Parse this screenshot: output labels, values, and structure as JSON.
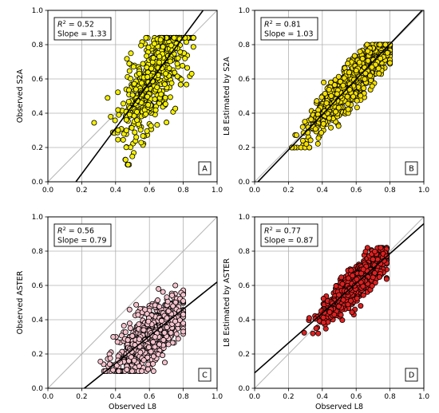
{
  "figure": {
    "background": "#ffffff"
  },
  "chart_data": [
    {
      "type": "scatter",
      "panel_label": "A",
      "xlabel": "",
      "ylabel": "Observed S2A",
      "xlim": [
        0.0,
        1.0
      ],
      "ylim": [
        0.0,
        1.0
      ],
      "xticks": [
        "0.0",
        "0.2",
        "0.4",
        "0.6",
        "0.8",
        "1.0"
      ],
      "yticks": [
        "0.0",
        "0.2",
        "0.4",
        "0.6",
        "0.8",
        "1.0"
      ],
      "grid": true,
      "r2_label": "R",
      "r2_value": " = 0.52",
      "slope_text": "Slope = 1.33",
      "fit_line": {
        "slope": 1.33,
        "intercept": -0.22
      },
      "one_to_one_line": true,
      "marker_color": "#f5f000",
      "cloud": {
        "x_center": 0.62,
        "x_sd": 0.1,
        "x_min": 0.22,
        "x_max": 0.86,
        "y_slope": 1.33,
        "y_intercept": -0.22,
        "y_sd": 0.14,
        "y_min": 0.1,
        "y_max": 0.84,
        "count": 520,
        "seed": 11
      }
    },
    {
      "type": "scatter",
      "panel_label": "B",
      "xlabel": "",
      "ylabel": "L8 Estimated by S2A",
      "xlim": [
        0.0,
        1.0
      ],
      "ylim": [
        0.0,
        1.0
      ],
      "xticks": [
        "0.0",
        "0.2",
        "0.4",
        "0.6",
        "0.8",
        "1.0"
      ],
      "yticks": [
        "0.0",
        "0.2",
        "0.4",
        "0.6",
        "0.8",
        "1.0"
      ],
      "grid": true,
      "r2_label": "R",
      "r2_value": " = 0.81",
      "slope_text": "Slope = 1.03",
      "fit_line": {
        "slope": 1.03,
        "intercept": -0.02
      },
      "one_to_one_line": true,
      "marker_color": "#f5e000",
      "cloud": {
        "x_center": 0.56,
        "x_sd": 0.12,
        "x_min": 0.22,
        "x_max": 0.8,
        "y_slope": 1.03,
        "y_intercept": -0.02,
        "y_sd": 0.06,
        "y_min": 0.2,
        "y_max": 0.8,
        "count": 900,
        "seed": 23
      }
    },
    {
      "type": "scatter",
      "panel_label": "C",
      "xlabel": "Observed L8",
      "ylabel": "Observed ASTER",
      "xlim": [
        0.0,
        1.0
      ],
      "ylim": [
        0.0,
        1.0
      ],
      "xticks": [
        "0.0",
        "0.2",
        "0.4",
        "0.6",
        "0.8",
        "1.0"
      ],
      "yticks": [
        "0.0",
        "0.2",
        "0.4",
        "0.6",
        "0.8",
        "1.0"
      ],
      "grid": true,
      "r2_label": "R",
      "r2_value": " = 0.56",
      "slope_text": "Slope = 0.79",
      "fit_line": {
        "slope": 0.79,
        "intercept": -0.17
      },
      "one_to_one_line": true,
      "marker_color": "#f4c2cc",
      "cloud": {
        "x_center": 0.6,
        "x_sd": 0.1,
        "x_min": 0.2,
        "x_max": 0.8,
        "y_slope": 0.79,
        "y_intercept": -0.17,
        "y_sd": 0.08,
        "y_min": 0.1,
        "y_max": 0.6,
        "count": 750,
        "seed": 37
      }
    },
    {
      "type": "scatter",
      "panel_label": "D",
      "xlabel": "Observed L8",
      "ylabel": "L8 Estimated by ASTER",
      "xlim": [
        0.0,
        1.0
      ],
      "ylim": [
        0.0,
        1.0
      ],
      "xticks": [
        "0.0",
        "0.2",
        "0.4",
        "0.6",
        "0.8",
        "1.0"
      ],
      "yticks": [
        "0.0",
        "0.2",
        "0.4",
        "0.6",
        "0.8",
        "1.0"
      ],
      "grid": true,
      "r2_label": "R",
      "r2_value": " = 0.77",
      "slope_text": "Slope = 0.87",
      "fit_line": {
        "slope": 0.87,
        "intercept": 0.09
      },
      "one_to_one_line": true,
      "marker_color": "#e02020",
      "cloud": {
        "x_center": 0.6,
        "x_sd": 0.09,
        "x_min": 0.27,
        "x_max": 0.78,
        "y_slope": 0.87,
        "y_intercept": 0.09,
        "y_sd": 0.05,
        "y_min": 0.32,
        "y_max": 0.82,
        "count": 800,
        "seed": 53
      }
    }
  ]
}
